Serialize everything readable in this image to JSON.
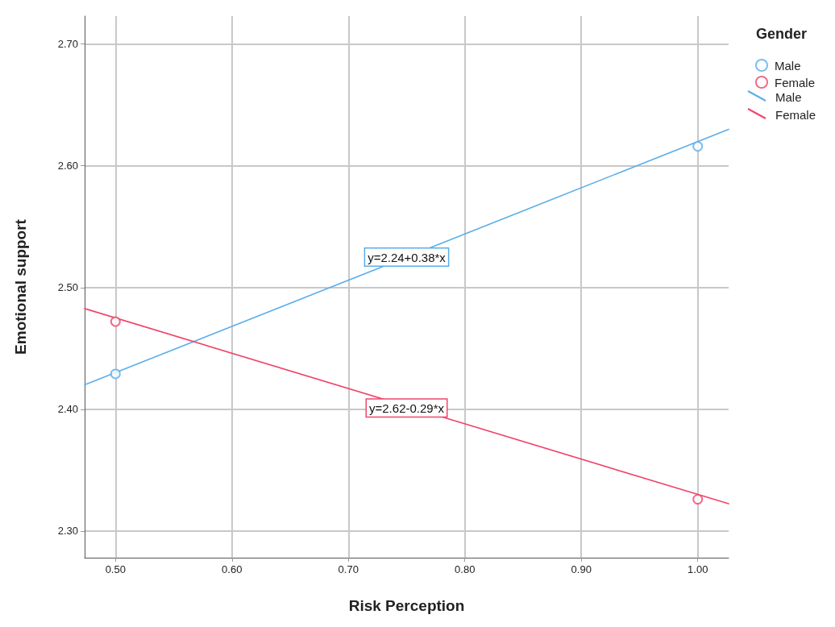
{
  "chart_data": {
    "type": "scatter",
    "xlabel": "Risk Perception",
    "ylabel": "Emotional support",
    "legend_title": "Gender",
    "legend": "top right",
    "grid": true,
    "xlim": [
      0.4735,
      1.0265
    ],
    "ylim": [
      2.278,
      2.723
    ],
    "xticks": [
      {
        "value": 0.5,
        "label": "0.50"
      },
      {
        "value": 0.6,
        "label": "0.60"
      },
      {
        "value": 0.7,
        "label": "0.70"
      },
      {
        "value": 0.8,
        "label": "0.80"
      },
      {
        "value": 0.9,
        "label": "0.90"
      },
      {
        "value": 1.0,
        "label": "1.00"
      }
    ],
    "yticks": [
      {
        "value": 2.3,
        "label": "2.30"
      },
      {
        "value": 2.4,
        "label": "2.40"
      },
      {
        "value": 2.5,
        "label": "2.50"
      },
      {
        "value": 2.6,
        "label": "2.60"
      },
      {
        "value": 2.7,
        "label": "2.70"
      }
    ],
    "series": [
      {
        "name": "Male",
        "marker": "circle",
        "color": "#5aaeea",
        "x": [
          0.5,
          1.0
        ],
        "values": [
          2.429,
          2.616
        ]
      },
      {
        "name": "Female",
        "marker": "circle",
        "color": "#f0456a",
        "x": [
          0.5,
          1.0
        ],
        "values": [
          2.472,
          2.326
        ]
      },
      {
        "name": "Male",
        "type": "line",
        "marker": "none",
        "color": "#5aaeea",
        "x": [
          0.4735,
          1.0265
        ],
        "values": [
          2.42,
          2.63
        ]
      },
      {
        "name": "Female",
        "type": "line",
        "marker": "none",
        "color": "#f0456a",
        "x": [
          0.4735,
          1.0265
        ],
        "values": [
          2.4827,
          2.3223
        ]
      }
    ],
    "annotations": [
      {
        "text": "y=2.24+0.38*x",
        "x": 0.75,
        "y": 2.525
      },
      {
        "text": "y=2.62-0.29*x",
        "x": 0.75,
        "y": 2.401
      }
    ]
  }
}
